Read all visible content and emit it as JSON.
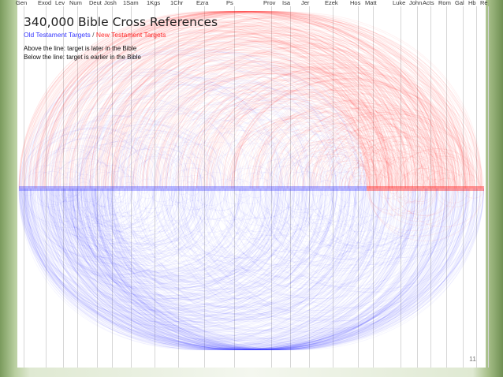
{
  "title": "340,000 Bible Cross References",
  "legend": {
    "old_label": "Old Testament Targets",
    "separator": " / ",
    "new_label": "New Testament Targets",
    "old_color": "#3a3aff",
    "new_color": "#ff2a2a"
  },
  "notes": {
    "above": "Above the line: target is later in the Bible",
    "below": "Below the line: target is earlier in the Bible"
  },
  "books": [
    "Gen",
    "Exod",
    "Lev",
    "Num",
    "Deut",
    "Josh",
    "1Sam",
    "1Kgs",
    "1Chr",
    "Ezra",
    "Ps",
    "Prov",
    "Isa",
    "Jer",
    "Ezek",
    "Hos",
    "Matt",
    "Luke",
    "John",
    "Acts",
    "Rom",
    "Gal",
    "Hb",
    "Re"
  ],
  "page_number": "11"
}
